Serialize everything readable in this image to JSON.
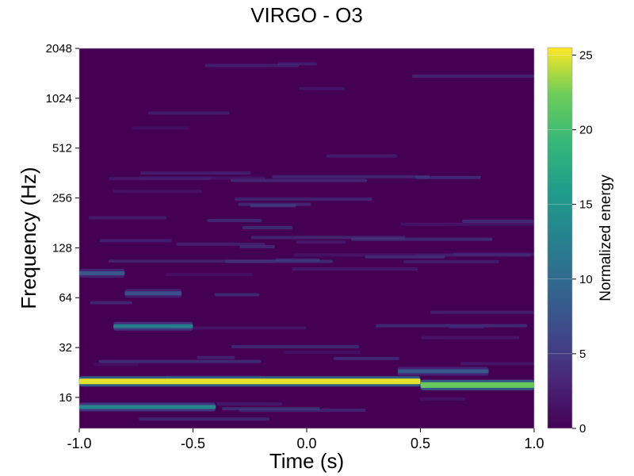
{
  "chart_data": {
    "type": "heatmap",
    "title": "VIRGO - O3",
    "xlabel": "Time (s)",
    "ylabel": "Frequency (Hz)",
    "xlim": [
      -1.0,
      1.0
    ],
    "ylim": [
      10.4,
      2048
    ],
    "yscale": "log2",
    "xticks": [
      -1.0,
      -0.5,
      0.0,
      0.5,
      1.0
    ],
    "xtick_labels": [
      "-1.0",
      "-0.5",
      "0.0",
      "0.5",
      "1.0"
    ],
    "yticks": [
      16,
      32,
      64,
      128,
      256,
      512,
      1024,
      2048
    ],
    "ytick_labels": [
      "16",
      "32",
      "64",
      "128",
      "256",
      "512",
      "1024",
      "2048"
    ],
    "colorbar": {
      "label": "Normalized energy",
      "range": [
        0,
        25.5
      ],
      "ticks": [
        0,
        5,
        10,
        15,
        20,
        25
      ],
      "tick_labels": [
        "0",
        "5",
        "10",
        "15",
        "20",
        "25"
      ],
      "colormap": "viridis"
    },
    "features": [
      {
        "t_start": -1.0,
        "t_end": 0.5,
        "freq": 20,
        "energy": 25
      },
      {
        "t_start": 0.5,
        "t_end": 1.0,
        "freq": 19,
        "energy": 22
      },
      {
        "t_start": -1.0,
        "t_end": -0.4,
        "freq": 14,
        "energy": 13
      },
      {
        "t_start": -0.85,
        "t_end": -0.5,
        "freq": 43,
        "energy": 12
      },
      {
        "t_start": -1.0,
        "t_end": -0.8,
        "freq": 90,
        "energy": 8
      },
      {
        "t_start": -0.8,
        "t_end": -0.55,
        "freq": 68,
        "energy": 7
      },
      {
        "t_start": 0.4,
        "t_end": 0.8,
        "freq": 23,
        "energy": 8
      }
    ]
  }
}
